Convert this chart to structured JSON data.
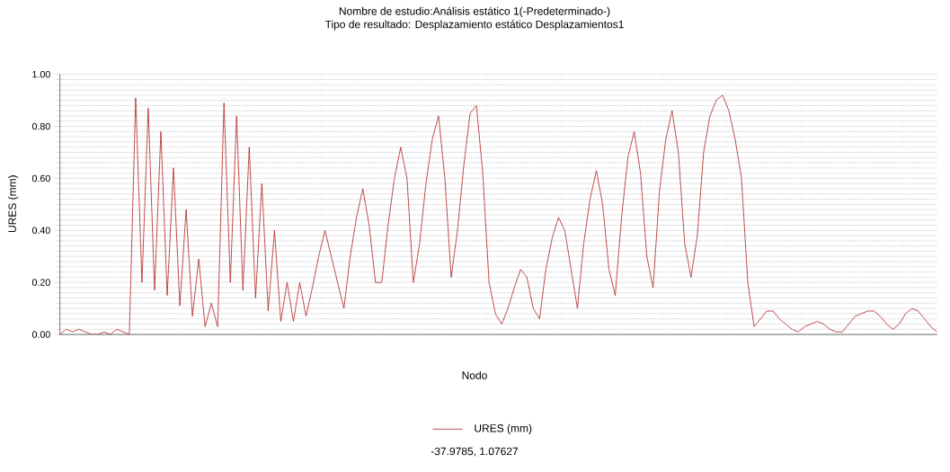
{
  "chart_data": {
    "type": "line",
    "title": "Nombre de estudio:Análisis estático 1(-Predeterminado-)",
    "subtitle": "Tipo de resultado: Desplazamiento estático Desplazamientos1",
    "xlabel": "Nodo",
    "ylabel": "URES (mm)",
    "annotations": [
      "-37.9785, 1.07627"
    ],
    "categories": [
      null,
      null,
      null,
      null,
      null,
      null,
      null,
      null,
      null,
      null,
      null,
      null,
      null,
      null,
      null,
      null,
      null,
      null,
      null,
      null,
      null,
      null,
      null,
      null,
      null,
      null,
      null,
      null,
      null,
      null,
      null,
      null,
      null,
      null,
      null,
      null,
      null,
      null,
      null,
      null,
      null,
      null,
      null,
      null,
      null,
      null,
      null,
      null,
      null,
      null,
      null,
      null,
      null,
      null,
      null,
      null,
      null,
      null,
      null,
      null,
      null,
      null,
      null,
      null,
      null,
      null,
      null,
      null,
      null,
      null,
      null,
      null,
      null,
      null,
      null,
      null,
      null,
      null,
      null,
      null,
      null,
      null,
      null,
      null,
      null,
      null,
      null,
      null,
      null,
      null,
      null,
      null,
      null,
      null,
      null,
      null,
      null,
      null,
      null,
      null,
      null,
      null,
      null,
      null,
      null,
      null,
      null,
      null,
      null,
      null,
      null,
      null,
      null,
      null,
      null,
      null,
      null,
      null,
      null,
      null,
      null,
      null,
      null,
      null,
      null,
      null,
      null,
      null,
      null,
      null,
      null,
      null,
      null,
      null,
      null,
      null,
      null,
      null,
      null,
      null
    ],
    "series": [
      {
        "name": "URES (mm)",
        "color": "#b22222",
        "values": [
          0.0,
          0.02,
          0.01,
          0.02,
          0.01,
          0.0,
          0.0,
          0.01,
          0.0,
          0.02,
          0.01,
          0.0,
          0.91,
          0.2,
          0.87,
          0.17,
          0.78,
          0.15,
          0.64,
          0.11,
          0.48,
          0.07,
          0.29,
          0.03,
          0.12,
          0.03,
          0.89,
          0.2,
          0.84,
          0.17,
          0.72,
          0.14,
          0.58,
          0.09,
          0.4,
          0.05,
          0.2,
          0.05,
          0.2,
          0.07,
          0.18,
          0.3,
          0.4,
          0.3,
          0.2,
          0.1,
          0.3,
          0.45,
          0.56,
          0.42,
          0.2,
          0.2,
          0.42,
          0.6,
          0.72,
          0.6,
          0.2,
          0.35,
          0.58,
          0.75,
          0.84,
          0.6,
          0.22,
          0.4,
          0.65,
          0.85,
          0.88,
          0.62,
          0.2,
          0.08,
          0.04,
          0.1,
          0.18,
          0.25,
          0.22,
          0.1,
          0.06,
          0.25,
          0.37,
          0.45,
          0.4,
          0.25,
          0.1,
          0.35,
          0.52,
          0.63,
          0.5,
          0.25,
          0.15,
          0.45,
          0.68,
          0.78,
          0.62,
          0.3,
          0.18,
          0.55,
          0.75,
          0.86,
          0.7,
          0.35,
          0.22,
          0.38,
          0.7,
          0.84,
          0.9,
          0.92,
          0.86,
          0.75,
          0.6,
          0.2,
          0.03,
          0.06,
          0.09,
          0.09,
          0.06,
          0.04,
          0.02,
          0.01,
          0.03,
          0.04,
          0.05,
          0.04,
          0.02,
          0.01,
          0.01,
          0.04,
          0.07,
          0.08,
          0.09,
          0.09,
          0.07,
          0.04,
          0.02,
          0.04,
          0.08,
          0.1,
          0.09,
          0.06,
          0.03,
          0.01
        ]
      }
    ],
    "ylim": [
      0,
      1
    ],
    "yticks": [
      {
        "value": 0,
        "label": "0.00"
      },
      {
        "value": 0.2,
        "label": "0.20"
      },
      {
        "value": 0.4,
        "label": "0.40"
      },
      {
        "value": 0.6,
        "label": "0.60"
      },
      {
        "value": 0.8,
        "label": "0.80"
      },
      {
        "value": 1,
        "label": "1.00"
      }
    ],
    "grid": "y",
    "legend": "bottom",
    "marker": "none",
    "line_style": "solid"
  }
}
